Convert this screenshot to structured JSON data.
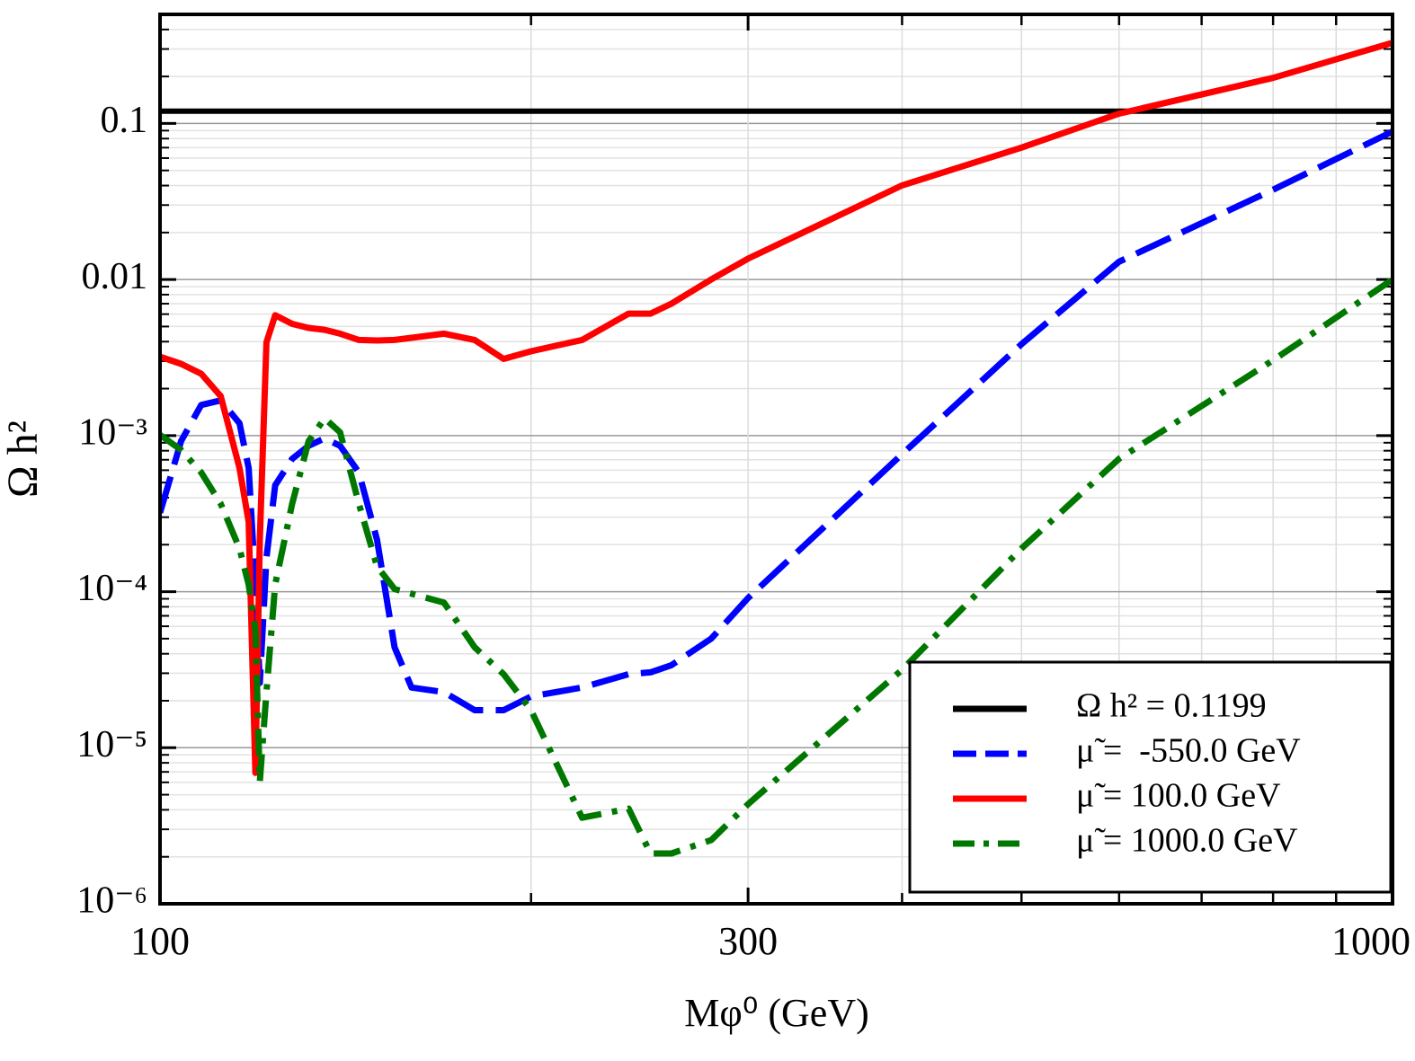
{
  "chart_data": {
    "type": "line",
    "xlabel": "Mφ⁰ (GeV)",
    "ylabel": "Ω h²",
    "xlog": true,
    "ylog": true,
    "grid": true,
    "legend": "lower right",
    "xlim": [
      100,
      1000
    ],
    "ylim": [
      1e-06,
      0.5
    ],
    "xticks": [
      100,
      300,
      1000
    ],
    "xminorticks": [
      200,
      400,
      500,
      600,
      700,
      800,
      900
    ],
    "yticks": [
      {
        "value": 1e-06,
        "label": "10⁻⁶"
      },
      {
        "value": 1e-05,
        "label": "10⁻⁵"
      },
      {
        "value": 0.0001,
        "label": "10⁻⁴"
      },
      {
        "value": 0.001,
        "label": "10⁻³"
      },
      0.01,
      0.1
    ],
    "yminorticks": [
      2e-06,
      3e-06,
      4e-06,
      5e-06,
      6e-06,
      7e-06,
      8e-06,
      9e-06,
      2e-05,
      3e-05,
      4e-05,
      5e-05,
      6e-05,
      7e-05,
      8e-05,
      9e-05,
      0.0002,
      0.0003,
      0.0004,
      0.0005,
      0.0006,
      0.0007,
      0.0008,
      0.0009,
      0.002,
      0.003,
      0.004,
      0.005,
      0.006,
      0.007,
      0.008,
      0.009,
      0.02,
      0.03,
      0.04,
      0.05,
      0.06,
      0.07,
      0.08,
      0.09,
      0.2,
      0.3,
      0.4
    ],
    "x": [
      100,
      104,
      108,
      112,
      116,
      118,
      119.5,
      120.5,
      122,
      124,
      128,
      132,
      136,
      140,
      145,
      150,
      155,
      160,
      170,
      180,
      190,
      200,
      220,
      240,
      250,
      260,
      280,
      300,
      400,
      500,
      600,
      800,
      1000
    ],
    "series": [
      {
        "name": "Ω h² = 0.1199",
        "color": "#000000",
        "dash": "solid",
        "x": [
          100,
          1000
        ],
        "values": [
          0.1199,
          0.1199
        ]
      },
      {
        "name": "μ̃ =  -550.0 GeV",
        "color": "#0000ff",
        "dash": "dashed",
        "values": [
          0.00032,
          0.00092,
          0.00157,
          0.00168,
          0.0012,
          0.00062,
          0.000111,
          2.6e-05,
          0.000165,
          0.00048,
          0.00071,
          0.00086,
          0.00096,
          0.00086,
          0.00058,
          0.000215,
          4.4e-05,
          2.43e-05,
          2.27e-05,
          1.74e-05,
          1.74e-05,
          2.13e-05,
          2.43e-05,
          2.96e-05,
          3.04e-05,
          3.38e-05,
          5e-05,
          9.1e-05,
          0.00076,
          0.00385,
          0.013,
          0.0376,
          0.0888
        ]
      },
      {
        "name": "μ̃ = 100.0 GeV",
        "color": "#ff0000",
        "dash": "solid",
        "values": [
          0.0032,
          0.00288,
          0.00249,
          0.00179,
          0.00062,
          0.00028,
          6.9e-06,
          0.000215,
          0.00396,
          0.0059,
          0.0052,
          0.0049,
          0.00476,
          0.0045,
          0.0041,
          0.00407,
          0.0041,
          0.00423,
          0.0045,
          0.0041,
          0.0031,
          0.00347,
          0.0041,
          0.00605,
          0.00605,
          0.007,
          0.01,
          0.0136,
          0.0401,
          0.07,
          0.1156,
          0.196,
          0.329
        ]
      },
      {
        "name": "μ̃ = 1000.0 GeV",
        "color": "#007800",
        "dash": "dashdot",
        "values": [
          0.00101,
          0.00081,
          0.00058,
          0.000366,
          0.000189,
          0.000111,
          5.7e-05,
          6.05e-06,
          2.27e-05,
          0.000111,
          0.000366,
          0.00092,
          0.00129,
          0.00105,
          0.000366,
          0.000145,
          0.000104,
          9.7e-05,
          8.5e-05,
          4.4e-05,
          2.96e-05,
          1.74e-05,
          3.56e-06,
          4.07e-06,
          2.1e-06,
          2.1e-06,
          2.56e-06,
          4.35e-06,
          3.16e-05,
          0.000189,
          0.00071,
          0.00304,
          0.01
        ]
      }
    ]
  }
}
